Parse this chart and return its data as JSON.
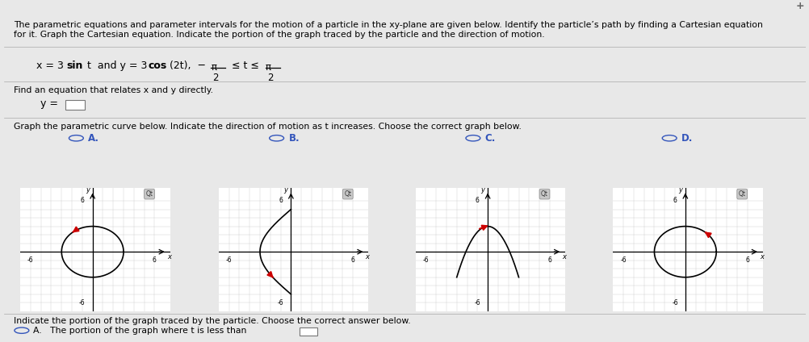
{
  "bg_color": "#e8e8e8",
  "panel_bg": "#ffffff",
  "title_text1": "The parametric equations and parameter intervals for the motion of a particle in the xy-plane are given below. Identify the particle’s path by finding a Cartesian equation",
  "title_text2": "for it. Graph the Cartesian equation. Indicate the portion of the graph traced by the particle and the direction of motion.",
  "find_text": "Find an equation that relates x and y directly.",
  "graph_text": "Graph the parametric curve below. Indicate the direction of motion as t increases. Choose the correct graph below.",
  "option_labels": [
    "A.",
    "B.",
    "C.",
    "D."
  ],
  "option_color": "#3355bb",
  "indicate_text": "Indicate the portion of the graph traced by the particle. Choose the correct answer below.",
  "option_a_bottom": "A.   The portion of the graph where t is less than",
  "text_color": "#000000",
  "grid_color": "#cccccc",
  "axis_color": "#000000",
  "arrow_red": "#cc0000",
  "topbar_color": "#d4d4d4",
  "separator_color": "#aaaaaa"
}
